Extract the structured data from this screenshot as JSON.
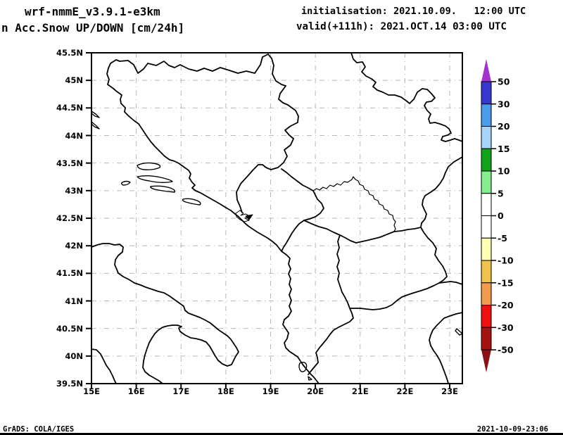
{
  "header": {
    "model_title": "wrf-nmmE_v3.9.1-e3km",
    "product_title": "n Acc.Snow UP/DOWN [cm/24h]",
    "init_line": "initialisation: 2021.10.09.   12:00 UTC",
    "valid_line": "valid(+111h): 2021.OCT.14 03:00 UTC"
  },
  "footer": {
    "grads_credit": "GrADS: COLA/IGES",
    "creation_timestamp": "2021-10-09-23:06"
  },
  "chart_data": {
    "type": "map",
    "title": "wrf-nmmE_v3.9.1-e3km  Acc.Snow UP/DOWN [cm/24h]",
    "model": "wrf-nmmE_v3.9.1-e3km",
    "variable": "Acc.Snow UP/DOWN",
    "units": "cm/24h",
    "init_time": "2021.10.09. 12:00 UTC",
    "forecast_hour": "+111h",
    "valid_time": "2021.OCT.14 03:00 UTC",
    "x_axis": {
      "ticks": [
        "15E",
        "16E",
        "17E",
        "18E",
        "19E",
        "20E",
        "21E",
        "22E",
        "23E"
      ],
      "range": [
        15,
        23.3
      ]
    },
    "y_axis": {
      "ticks": [
        "45.5N",
        "45N",
        "44.5N",
        "44N",
        "43.5N",
        "43N",
        "42.5N",
        "42N",
        "41.5N",
        "41N",
        "40.5N",
        "40N",
        "39.5N"
      ],
      "range": [
        39.5,
        45.5
      ]
    },
    "grid": true,
    "field_note": "no colored snow field visible; map area blank white with coastlines and borders only",
    "colorbar": {
      "labels": [
        "50",
        "30",
        "20",
        "15",
        "10",
        "5",
        "0",
        "-5",
        "-10",
        "-15",
        "-20",
        "-30",
        "-50"
      ],
      "levels": [
        50,
        30,
        20,
        15,
        10,
        5,
        0,
        -5,
        -10,
        -15,
        -20,
        -30,
        -50
      ],
      "segment_colors": [
        "#3737d0",
        "#4a9cec",
        "#a8d4f8",
        "#11a21c",
        "#85ee8f",
        "#ffffff",
        "#ffffff",
        "#ffffb4",
        "#eec34b",
        "#f29a4e",
        "#ee1010",
        "#a41212"
      ],
      "above_color": "#a233cf",
      "below_color": "#8b1212"
    }
  }
}
